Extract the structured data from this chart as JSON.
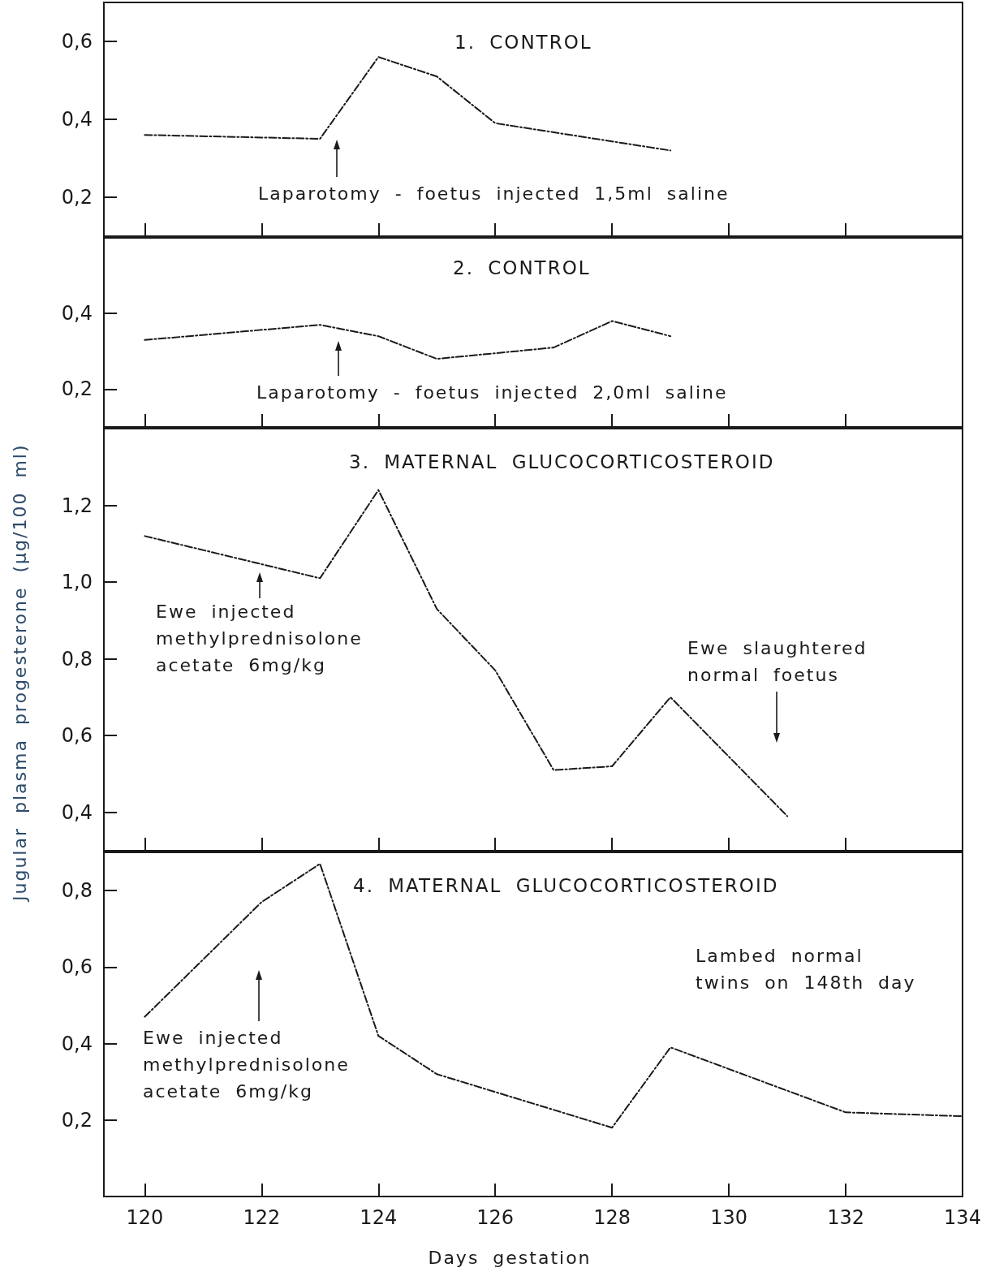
{
  "chart_data": [
    {
      "type": "line",
      "title": "1. CONTROL",
      "annotations": [
        "Laparotomy - foetus injected 1,5ml saline"
      ],
      "x": [
        120,
        123,
        124,
        125,
        126,
        129
      ],
      "series": [
        {
          "color": "#1a1a1a",
          "values": [
            0.36,
            0.35,
            0.56,
            0.51,
            0.39,
            0.32
          ]
        }
      ],
      "xlim": [
        119.3,
        134
      ],
      "xticks": [
        {
          "value": 120,
          "label": null
        },
        {
          "value": 122,
          "label": null
        },
        {
          "value": 124,
          "label": null
        },
        {
          "value": 126,
          "label": null
        },
        {
          "value": 128,
          "label": null
        },
        {
          "value": 130,
          "label": null
        },
        {
          "value": 132,
          "label": null
        },
        {
          "value": 134,
          "label": null
        }
      ],
      "ylim": [
        0.1,
        0.7
      ],
      "yticks": [
        {
          "value": 0.2,
          "label": "0,2"
        },
        {
          "value": 0.4,
          "label": "0,4"
        },
        {
          "value": 0.6,
          "label": "0,6"
        }
      ],
      "tick_labels": "y",
      "grid": false,
      "marker": "none",
      "line_style": "dashed"
    },
    {
      "type": "line",
      "title": "2. CONTROL",
      "annotations": [
        "Laparotomy - foetus injected 2,0ml saline"
      ],
      "x": [
        120,
        123,
        124,
        125,
        127,
        128,
        129
      ],
      "series": [
        {
          "color": "#1a1a1a",
          "values": [
            0.33,
            0.37,
            0.34,
            0.28,
            0.31,
            0.38,
            0.34
          ]
        }
      ],
      "xlim": [
        119.3,
        134
      ],
      "xticks": [
        {
          "value": 120,
          "label": null
        },
        {
          "value": 122,
          "label": null
        },
        {
          "value": 124,
          "label": null
        },
        {
          "value": 126,
          "label": null
        },
        {
          "value": 128,
          "label": null
        },
        {
          "value": 130,
          "label": null
        },
        {
          "value": 132,
          "label": null
        },
        {
          "value": 134,
          "label": null
        }
      ],
      "ylim": [
        0.1,
        0.6
      ],
      "yticks": [
        {
          "value": 0.2,
          "label": "0,2"
        },
        {
          "value": 0.4,
          "label": "0,4"
        }
      ],
      "tick_labels": "y",
      "grid": false,
      "marker": "none",
      "line_style": "dashed"
    },
    {
      "type": "line",
      "title": "3. MATERNAL GLUCOCORTICOSTEROID",
      "ylabel": "Jugular plasma progesterone (µg/100 ml)",
      "annotations": [
        "Ewe injected\nmethylprednisolone\nacetate 6mg/kg",
        "Ewe slaughtered\nnormal foetus"
      ],
      "x": [
        120,
        123,
        124,
        125,
        126,
        127,
        128,
        129,
        131
      ],
      "series": [
        {
          "color": "#1a1a1a",
          "values": [
            1.12,
            1.01,
            1.24,
            0.93,
            0.77,
            0.51,
            0.52,
            0.7,
            0.39
          ]
        }
      ],
      "xlim": [
        119.3,
        134
      ],
      "xticks": [
        {
          "value": 120,
          "label": null
        },
        {
          "value": 122,
          "label": null
        },
        {
          "value": 124,
          "label": null
        },
        {
          "value": 126,
          "label": null
        },
        {
          "value": 128,
          "label": null
        },
        {
          "value": 130,
          "label": null
        },
        {
          "value": 132,
          "label": null
        },
        {
          "value": 134,
          "label": null
        }
      ],
      "ylim": [
        0.3,
        1.4
      ],
      "yticks": [
        {
          "value": 0.4,
          "label": "0,4"
        },
        {
          "value": 0.6,
          "label": "0,6"
        },
        {
          "value": 0.8,
          "label": "0,8"
        },
        {
          "value": 1.0,
          "label": "1,0"
        },
        {
          "value": 1.2,
          "label": "1,2"
        }
      ],
      "tick_labels": "y",
      "grid": false,
      "marker": "none",
      "line_style": "dashed"
    },
    {
      "type": "line",
      "title": "4. MATERNAL GLUCOCORTICOSTEROID",
      "xlabel": "Days gestation",
      "annotations": [
        "Lambed normal\ntwins on 148th day",
        "Ewe injected\nmethylprednisolone\nacetate 6mg/kg"
      ],
      "x": [
        120,
        122,
        123,
        124,
        125,
        128,
        129,
        132,
        134
      ],
      "series": [
        {
          "color": "#1a1a1a",
          "values": [
            0.47,
            0.77,
            0.87,
            0.42,
            0.32,
            0.18,
            0.39,
            0.22,
            0.21
          ]
        }
      ],
      "xlim": [
        119.3,
        134
      ],
      "xticks": [
        120,
        122,
        124,
        126,
        128,
        130,
        132,
        134
      ],
      "ylim": [
        0,
        0.9
      ],
      "yticks": [
        {
          "value": 0.2,
          "label": "0,2"
        },
        {
          "value": 0.4,
          "label": "0,4"
        },
        {
          "value": 0.6,
          "label": "0,6"
        },
        {
          "value": 0.8,
          "label": "0,8"
        }
      ],
      "grid": false,
      "marker": "none",
      "line_style": "dashed"
    }
  ]
}
